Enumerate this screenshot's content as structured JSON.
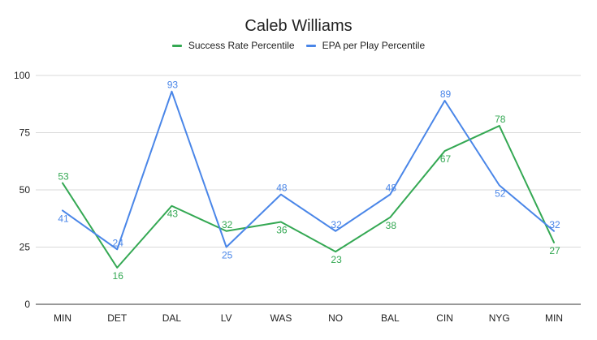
{
  "chart_data": {
    "type": "line",
    "title": "Caleb Williams",
    "categories": [
      "MIN",
      "DET",
      "DAL",
      "LV",
      "WAS",
      "NO",
      "BAL",
      "CIN",
      "NYG",
      "MIN"
    ],
    "series": [
      {
        "name": "Success Rate Percentile",
        "color": "#34A853",
        "values": [
          53,
          16,
          43,
          32,
          36,
          23,
          38,
          67,
          78,
          27
        ]
      },
      {
        "name": "EPA per Play Percentile",
        "color": "#4A86E8",
        "values": [
          41,
          24,
          93,
          25,
          48,
          32,
          48,
          89,
          52,
          32
        ]
      }
    ],
    "ylim": [
      0,
      100
    ],
    "yticks": [
      "0",
      "25",
      "50",
      "75",
      "100"
    ],
    "xlabel": "",
    "ylabel": "",
    "grid": true,
    "legend_position": "top"
  }
}
